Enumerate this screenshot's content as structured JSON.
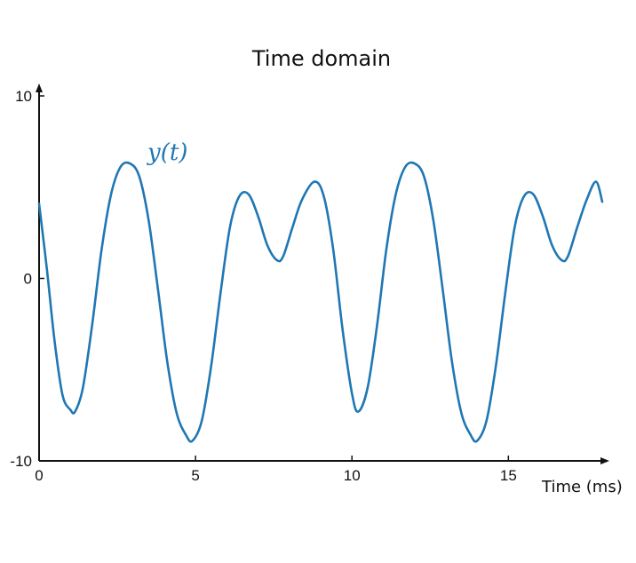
{
  "chart_data": {
    "type": "line",
    "title": "Time domain",
    "xlabel": "Time (ms)",
    "ylabel": "",
    "xlim": [
      0,
      18
    ],
    "ylim": [
      -10,
      10
    ],
    "xticks": [
      0,
      5,
      10,
      15
    ],
    "xtick_labels": [
      "0",
      "5",
      "10",
      "15"
    ],
    "yticks": [
      -10,
      0,
      10
    ],
    "ytick_labels": [
      "-10",
      "0",
      "10"
    ],
    "grid": false,
    "series": [
      {
        "name": "y(t)",
        "color": "#1f77b4",
        "x": [
          0,
          0.25,
          0.5,
          0.75,
          1.0,
          1.15,
          1.4,
          1.7,
          2.0,
          2.3,
          2.6,
          2.9,
          3.2,
          3.5,
          3.8,
          4.1,
          4.4,
          4.7,
          4.9,
          5.2,
          5.5,
          5.8,
          6.1,
          6.4,
          6.7,
          7.0,
          7.3,
          7.6,
          7.8,
          8.1,
          8.4,
          8.8,
          9.1,
          9.4,
          9.7,
          10.0,
          10.2,
          10.5,
          10.8,
          11.1,
          11.4,
          11.7,
          12.0,
          12.3,
          12.6,
          12.9,
          13.2,
          13.5,
          13.8,
          14.0,
          14.3,
          14.6,
          14.9,
          15.2,
          15.5,
          15.8,
          16.1,
          16.4,
          16.7,
          16.9,
          17.2,
          17.5,
          17.8,
          18.0
        ],
        "values": [
          4.1,
          0.5,
          -3.5,
          -6.4,
          -7.2,
          -7.3,
          -6.0,
          -2.5,
          1.6,
          4.6,
          6.1,
          6.3,
          5.6,
          3.2,
          -0.6,
          -4.6,
          -7.4,
          -8.6,
          -8.9,
          -7.8,
          -4.8,
          -0.8,
          2.8,
          4.5,
          4.6,
          3.4,
          1.8,
          1.0,
          1.2,
          2.8,
          4.3,
          5.3,
          4.5,
          1.6,
          -2.8,
          -6.3,
          -7.3,
          -6.0,
          -2.6,
          1.6,
          4.6,
          6.1,
          6.3,
          5.6,
          3.2,
          -0.6,
          -4.6,
          -7.4,
          -8.6,
          -8.9,
          -7.8,
          -4.8,
          -0.8,
          2.8,
          4.5,
          4.6,
          3.4,
          1.8,
          1.0,
          1.2,
          2.8,
          4.3,
          5.3,
          4.2
        ]
      }
    ]
  }
}
